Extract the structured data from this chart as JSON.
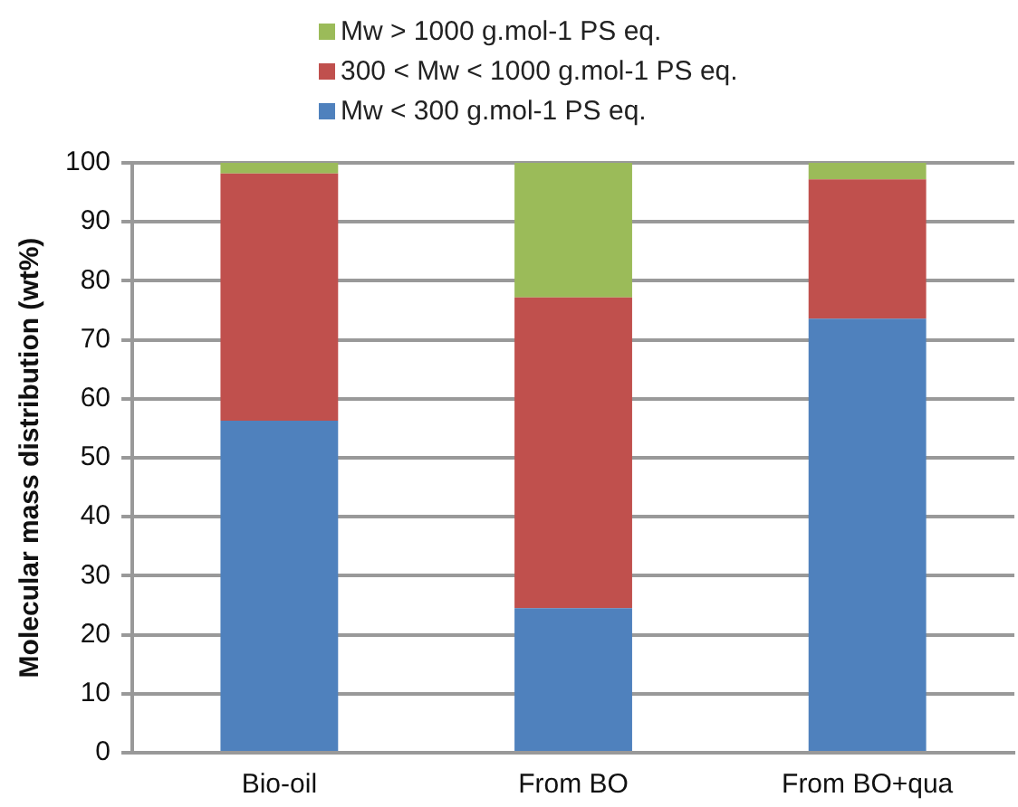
{
  "chart_data": {
    "type": "bar",
    "stacked": true,
    "ylabel": "Molecular mass distribution (wt%)",
    "categories": [
      "Bio-oil",
      "From BO",
      "From BO+qua"
    ],
    "series": [
      {
        "name": "Mw < 300 g.mol-1 PS eq.",
        "color": "#4f81bd",
        "values": [
          56.3,
          24.5,
          73.6
        ]
      },
      {
        "name": "300 < Mw < 1000 g.mol-1 PS eq.",
        "color": "#c0504d",
        "values": [
          41.9,
          52.7,
          23.6
        ]
      },
      {
        "name": "Mw > 1000 g.mol-1 PS eq.",
        "color": "#9bbb59",
        "values": [
          1.8,
          22.8,
          2.8
        ]
      }
    ],
    "ylim": [
      0,
      100
    ],
    "yticks": [
      0,
      10,
      20,
      30,
      40,
      50,
      60,
      70,
      80,
      90,
      100
    ],
    "grid": "y",
    "legend": "top"
  }
}
